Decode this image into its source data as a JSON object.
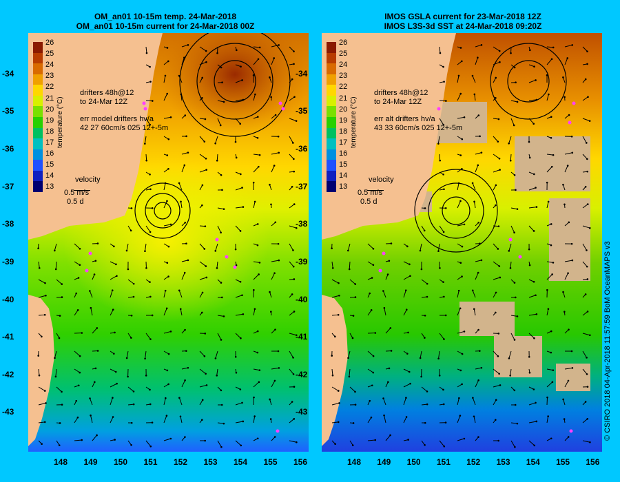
{
  "left_panel": {
    "title1": "OM_an01 10-15m temp. 24-Mar-2018",
    "title2": "OM_an01 10-15m current for 24-Mar-2018 00Z",
    "drifters_line1": "drifters 48h@12",
    "drifters_line2": "to 24-Mar 12Z",
    "err_line1": "err model drifters hv/a",
    "err_line2": "42 27 60cm/s 025 12+-5m"
  },
  "right_panel": {
    "title1": "IMOS GSLA current for 23-Mar-2018 12Z",
    "title2": "IMOS L3S-3d SST at 24-Mar-2018 09:20Z",
    "drifters_line1": "drifters 48h@12",
    "drifters_line2": "to 24-Mar 12Z",
    "err_line1": "err alt drifters hv/a",
    "err_line2": "43 33 60cm/s 025 12+-5m"
  },
  "colorbar": {
    "title": "temperature (°C)",
    "ticks": [
      "26",
      "25",
      "24",
      "23",
      "22",
      "21",
      "20",
      "19",
      "18",
      "17",
      "16",
      "15",
      "14",
      "13"
    ],
    "colors": [
      "#8b1a00",
      "#b83c00",
      "#d96a00",
      "#f0a000",
      "#ffd700",
      "#d8f000",
      "#7ae000",
      "#28d000",
      "#00c060",
      "#00c0c0",
      "#0090e0",
      "#2050ff",
      "#1020c0",
      "#000070"
    ]
  },
  "velocity_legend": {
    "label": "velocity",
    "speed": "0.5 m/s",
    "time": "0.5 d"
  },
  "axes": {
    "y_ticks": [
      "-34",
      "-35",
      "-36",
      "-37",
      "-38",
      "-39",
      "-40",
      "-41",
      "-42",
      "-43"
    ],
    "x_ticks": [
      "148",
      "149",
      "150",
      "151",
      "152",
      "153",
      "154",
      "155",
      "156"
    ]
  },
  "credit": "© CSIRO 2018  04-Apr-2018 11:57:59 BoM OceanMAPS v3",
  "colors": {
    "background": "#00c8ff",
    "land": "#f5c090",
    "drifter": "#ff40ff"
  }
}
